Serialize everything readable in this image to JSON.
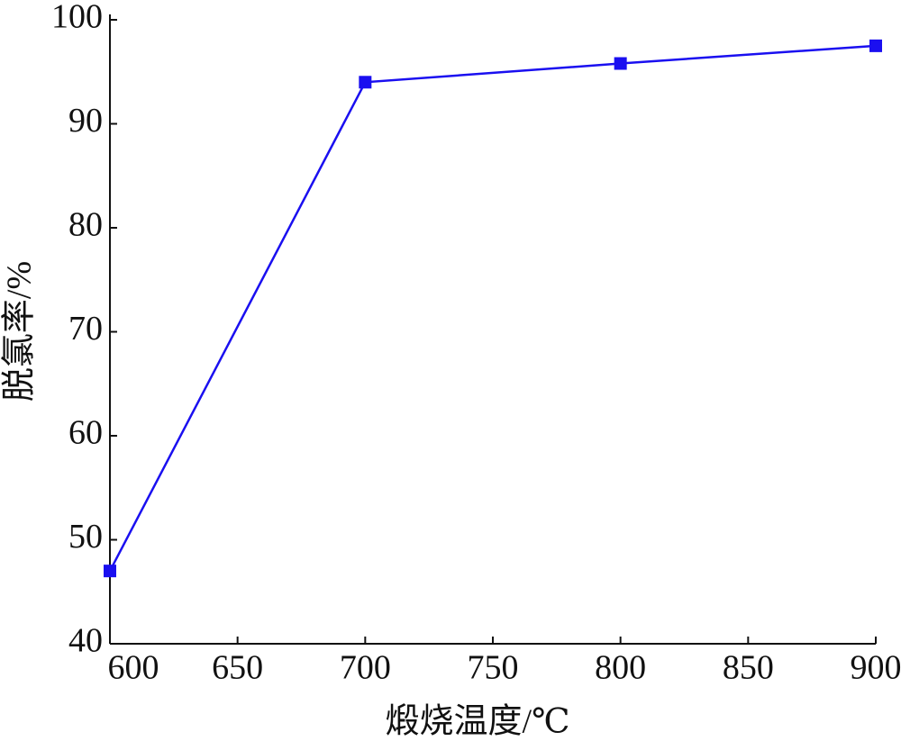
{
  "chart_data": {
    "type": "line",
    "x_label": "煅烧温度/℃",
    "y_label": "脱氯率/%",
    "x": [
      600,
      700,
      800,
      900
    ],
    "series": [
      {
        "name": "脱氯率",
        "color": "#1a0ff0",
        "values": [
          47,
          94,
          95.8,
          97.5
        ]
      }
    ],
    "xlim": [
      600,
      900
    ],
    "xticks": [
      600,
      650,
      700,
      750,
      800,
      850,
      900
    ],
    "ylim": [
      40,
      100
    ],
    "yticks": [
      40,
      50,
      60,
      70,
      80,
      90,
      100
    ],
    "grid": false,
    "marker": "square"
  }
}
